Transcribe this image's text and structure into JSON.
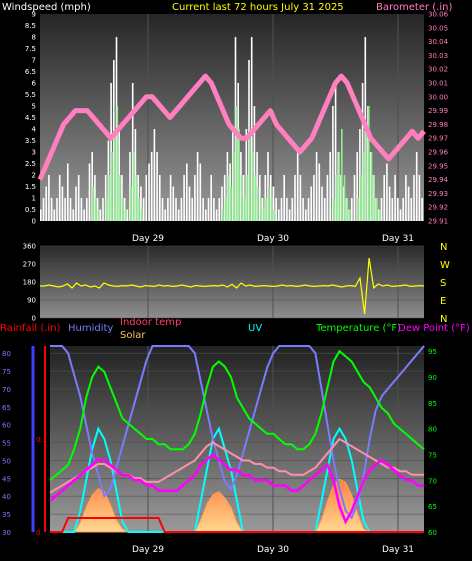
{
  "header": {
    "left": "Windspeed (mph)",
    "center": "Current last 72 hours July 31 2025",
    "right": "Barometer (.in)"
  },
  "colors": {
    "wind_bar": "#ffffff",
    "gust_bar": "#90ee90",
    "barometer": "#ff7fbf",
    "direction": "#ffff00",
    "rain": "#ff0000",
    "humidity": "#7b7bff",
    "indoor": "#ff8fb0",
    "solar": "#ffc06a",
    "uv": "#00ffff",
    "temperature": "#00ff00",
    "dewpoint": "#ff00ff"
  },
  "chart_data": [
    {
      "type": "bar",
      "name": "wind",
      "left_axis": {
        "label": "Windspeed (mph)",
        "ylim": [
          0,
          9
        ],
        "ticks": [
          0,
          0.5,
          1,
          1.5,
          2,
          2.5,
          3,
          3.5,
          4,
          4.5,
          5,
          5.5,
          6,
          6.5,
          7,
          7.5,
          8,
          8.5,
          9
        ]
      },
      "right_axis": {
        "label": "Barometer (.in)",
        "ylim": [
          29.91,
          30.06
        ],
        "ticks": [
          29.91,
          29.92,
          29.93,
          29.94,
          29.95,
          29.96,
          29.97,
          29.98,
          29.99,
          30,
          30.01,
          30.02,
          30.03,
          30.04,
          30.05,
          30.06
        ]
      },
      "day_labels": [
        "Day 29",
        "Day 30",
        "Day 31"
      ],
      "wind_values": [
        0.5,
        1,
        1.5,
        2,
        1,
        0.5,
        1,
        2,
        1.5,
        1,
        2.5,
        1,
        0.5,
        1.5,
        2,
        1,
        0.5,
        1,
        2.5,
        3,
        2,
        1,
        0.5,
        1,
        2,
        3.5,
        6,
        7,
        8,
        4,
        2,
        1,
        0.5,
        3,
        6,
        4,
        2,
        1.5,
        1,
        2,
        2.5,
        3,
        4,
        3,
        2,
        1,
        0.5,
        1,
        2,
        1.5,
        1,
        0.5,
        1,
        2,
        2.5,
        1.5,
        1,
        2,
        3,
        2.5,
        1,
        0.5,
        1,
        2,
        1,
        0.5,
        1,
        1.5,
        2,
        3,
        2.5,
        4,
        8,
        6,
        3,
        2,
        4,
        7,
        8,
        5,
        3,
        2,
        1,
        2,
        3,
        2,
        1.5,
        1,
        0.5,
        1,
        2,
        1,
        0.5,
        1,
        2,
        3,
        2,
        1,
        0.5,
        1,
        1.5,
        2,
        3,
        2.5,
        1.5,
        1,
        2,
        3,
        5,
        6,
        3,
        2,
        1.5,
        1,
        0.5,
        1,
        2,
        3,
        4,
        6,
        8,
        5,
        3,
        2,
        1,
        0.5,
        1,
        2,
        2.5,
        1.5,
        1,
        2,
        1,
        0.5,
        1,
        2,
        1.5,
        1,
        2,
        3,
        2,
        1
      ],
      "gust_values": [
        0,
        0,
        0,
        0,
        0,
        0,
        0,
        0,
        0,
        0,
        0,
        0,
        0,
        0,
        0,
        0,
        0,
        0,
        0,
        1.5,
        1,
        0.5,
        0,
        0,
        1,
        2,
        3,
        4,
        5,
        2,
        1,
        0.5,
        0,
        1.5,
        3,
        2,
        1,
        0.5,
        0,
        0,
        0,
        0,
        0,
        0,
        0,
        0,
        0,
        0,
        0,
        0,
        0,
        0,
        0,
        0,
        0,
        0,
        0,
        0,
        0,
        0,
        0,
        0,
        0,
        0,
        0,
        0,
        0,
        0.5,
        1,
        2,
        1.5,
        3,
        5,
        4,
        2,
        1,
        2,
        4,
        3,
        2,
        1.5,
        1,
        0.5,
        1,
        1.5,
        1,
        0.5,
        0,
        0,
        0,
        0,
        0,
        0,
        0,
        0,
        0,
        0,
        0,
        0,
        0,
        0,
        0,
        0,
        0,
        0,
        0,
        0,
        0,
        1,
        2,
        3,
        4,
        2,
        1,
        0.5,
        0,
        0,
        1,
        2,
        3,
        4,
        5,
        3,
        2,
        1,
        0.5,
        0,
        0,
        0,
        0,
        0,
        0,
        0,
        0,
        0,
        0,
        0,
        0,
        0,
        0,
        0,
        0,
        0
      ],
      "barometer": [
        29.94,
        29.95,
        29.96,
        29.97,
        29.98,
        29.985,
        29.99,
        29.99,
        29.99,
        29.985,
        29.98,
        29.975,
        29.97,
        29.975,
        29.98,
        29.985,
        29.99,
        29.995,
        30.0,
        30.0,
        29.995,
        29.99,
        29.985,
        29.99,
        29.995,
        30.0,
        30.005,
        30.01,
        30.015,
        30.01,
        30.0,
        29.99,
        29.98,
        29.975,
        29.97,
        29.97,
        29.975,
        29.98,
        29.985,
        29.99,
        29.98,
        29.975,
        29.97,
        29.965,
        29.96,
        29.965,
        29.97,
        29.98,
        29.99,
        30.0,
        30.01,
        30.015,
        30.01,
        30.0,
        29.99,
        29.98,
        29.97,
        29.965,
        29.96,
        29.955,
        29.96,
        29.965,
        29.97,
        29.975,
        29.97,
        29.975
      ]
    },
    {
      "type": "line",
      "name": "direction",
      "right_labels": [
        "N",
        "W",
        "S",
        "E",
        "N"
      ],
      "ylim": [
        0,
        360
      ],
      "ticks": [
        0,
        90,
        180,
        270,
        360
      ],
      "day_labels": [
        "Day 29",
        "Day 30",
        "Day 31"
      ],
      "values": [
        160,
        160,
        165,
        160,
        155,
        160,
        170,
        150,
        175,
        160,
        165,
        155,
        160,
        150,
        175,
        165,
        160,
        158,
        162,
        160,
        165,
        160,
        155,
        162,
        160,
        158,
        165,
        160,
        162,
        158,
        160,
        165,
        160,
        155,
        162,
        160,
        158,
        160,
        162,
        160,
        165,
        155,
        168,
        150,
        175,
        160,
        165,
        158,
        160,
        162,
        160,
        158,
        160,
        165,
        160,
        162,
        158,
        160,
        165,
        160,
        158,
        160,
        162,
        160,
        165,
        160,
        155,
        160,
        162,
        158,
        200,
        20,
        300,
        150,
        170,
        160,
        165,
        158,
        160,
        162,
        165,
        158,
        160,
        162,
        160
      ]
    },
    {
      "type": "line",
      "name": "climate",
      "legend": [
        "Rainfall (.in)",
        "Humidity",
        "Indoor temp",
        "Solar",
        "UV",
        "Temperature (°F)",
        "Dew Point (°F)"
      ],
      "left_axis": {
        "ylim": [
          30,
          82
        ],
        "ticks": [
          30,
          35,
          40,
          45,
          50,
          55,
          60,
          65,
          70,
          75,
          80
        ]
      },
      "rain_axis": {
        "ticks": [
          "0",
          "0.1"
        ],
        "ylim": [
          0,
          0.2
        ]
      },
      "right_axis": {
        "ylim": [
          60,
          96
        ],
        "ticks": [
          60,
          65,
          70,
          75,
          80,
          85,
          90,
          95
        ]
      },
      "day_labels": [
        "Day 29",
        "Day 30",
        "Day 31"
      ],
      "humidity": [
        82,
        82,
        82,
        80,
        74,
        68,
        60,
        52,
        46,
        40,
        42,
        48,
        54,
        60,
        66,
        72,
        78,
        82,
        82,
        82,
        82,
        82,
        82,
        82,
        80,
        72,
        64,
        56,
        50,
        44,
        42,
        46,
        52,
        58,
        64,
        70,
        76,
        80,
        82,
        82,
        82,
        82,
        82,
        82,
        80,
        70,
        60,
        50,
        42,
        36,
        34,
        38,
        46,
        56,
        64,
        68,
        70,
        72,
        74,
        76,
        78,
        80,
        82
      ],
      "temperature": [
        70,
        71,
        72,
        73,
        76,
        80,
        86,
        90,
        92,
        91,
        88,
        85,
        82,
        81,
        80,
        79,
        78,
        78,
        77,
        77,
        76,
        76,
        76,
        77,
        79,
        83,
        88,
        92,
        93,
        92,
        90,
        86,
        84,
        82,
        81,
        80,
        79,
        79,
        78,
        77,
        77,
        76,
        76,
        77,
        79,
        83,
        88,
        93,
        95,
        94,
        93,
        91,
        89,
        88,
        86,
        84,
        83,
        81,
        80,
        79,
        78,
        77,
        76
      ],
      "dewpoint": [
        66,
        67,
        68,
        69,
        70,
        71,
        72,
        73,
        74,
        74,
        73,
        72,
        71,
        71,
        70,
        70,
        69,
        69,
        68,
        68,
        68,
        68,
        69,
        70,
        71,
        73,
        74,
        75,
        74,
        73,
        72,
        72,
        71,
        71,
        70,
        70,
        70,
        69,
        69,
        69,
        68,
        68,
        69,
        70,
        71,
        72,
        73,
        70,
        65,
        62,
        64,
        67,
        70,
        72,
        73,
        74,
        73,
        72,
        71,
        70,
        70,
        69,
        69
      ],
      "indoor": [
        41,
        42,
        43,
        44,
        45,
        46,
        47,
        48,
        49,
        49,
        48,
        47,
        46,
        46,
        45,
        45,
        44,
        44,
        44,
        45,
        46,
        47,
        48,
        49,
        50,
        52,
        54,
        55,
        54,
        53,
        52,
        51,
        50,
        50,
        49,
        49,
        48,
        48,
        47,
        47,
        46,
        46,
        46,
        47,
        48,
        50,
        52,
        54,
        56,
        55,
        54,
        53,
        52,
        51,
        50,
        49,
        48,
        48,
        47,
        47,
        46,
        46,
        46
      ],
      "uv": [
        0,
        0,
        0,
        0,
        0,
        2,
        5,
        8,
        10,
        9,
        7,
        4,
        1,
        0,
        0,
        0,
        0,
        0,
        0,
        0,
        0,
        0,
        0,
        0,
        0,
        3,
        6,
        9,
        10,
        8,
        6,
        3,
        0,
        0,
        0,
        0,
        0,
        0,
        0,
        0,
        0,
        0,
        0,
        0,
        0,
        3,
        6,
        9,
        10,
        9,
        7,
        4,
        1,
        0,
        0,
        0,
        0,
        0,
        0,
        0,
        0,
        0,
        0
      ],
      "solar": [
        0,
        0,
        0,
        0,
        0,
        3,
        8,
        12,
        14,
        13,
        9,
        4,
        1,
        0,
        0,
        0,
        0,
        0,
        0,
        0,
        0,
        0,
        0,
        0,
        0,
        4,
        9,
        12,
        13,
        11,
        8,
        3,
        0,
        0,
        0,
        0,
        0,
        0,
        0,
        0,
        0,
        0,
        0,
        0,
        0,
        4,
        10,
        15,
        17,
        16,
        12,
        6,
        1,
        0,
        0,
        0,
        0,
        0,
        0,
        0,
        0,
        0,
        0
      ],
      "rain": [
        0,
        0,
        0,
        0.01,
        0.01,
        0.01,
        0.01,
        0.01,
        0.01,
        0.01,
        0.01,
        0.01,
        0.01,
        0.01,
        0.01,
        0.01,
        0.01,
        0.01,
        0.01,
        0,
        0,
        0,
        0,
        0,
        0,
        0,
        0,
        0,
        0,
        0,
        0,
        0,
        0,
        0,
        0,
        0,
        0,
        0,
        0,
        0,
        0,
        0,
        0,
        0,
        0,
        0,
        0,
        0,
        0,
        0,
        0,
        0,
        0,
        0,
        0,
        0,
        0,
        0,
        0,
        0,
        0,
        0,
        0
      ]
    }
  ]
}
